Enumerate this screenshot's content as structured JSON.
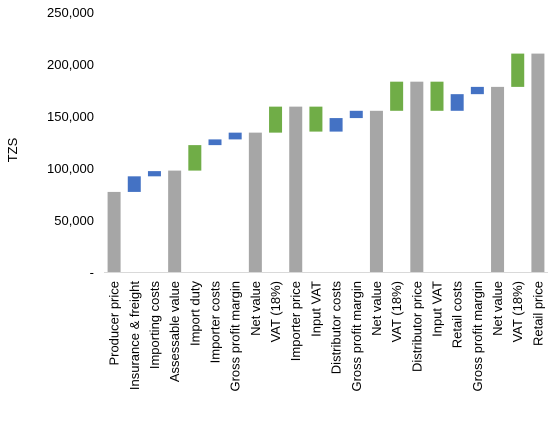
{
  "chart_data": {
    "type": "bar",
    "subtype": "waterfall",
    "title": "",
    "xlabel": "",
    "ylabel": "TZS",
    "ylim": [
      0,
      250000
    ],
    "yticks": [
      {
        "value": 0,
        "label": "-"
      },
      {
        "value": 50000,
        "label": "50,000"
      },
      {
        "value": 100000,
        "label": "100,000"
      },
      {
        "value": 150000,
        "label": "150,000"
      },
      {
        "value": 200000,
        "label": "200,000"
      },
      {
        "value": 250000,
        "label": "250,000"
      }
    ],
    "grid": false,
    "legend": "none",
    "colors": {
      "total": "#a6a6a6",
      "cost": "#4472c4",
      "tax": "#70ad47"
    },
    "bars": [
      {
        "label": "Producer price",
        "kind": "total",
        "base": 0,
        "top": 77000
      },
      {
        "label": "Insurance & freight",
        "kind": "cost",
        "base": 77000,
        "top": 92000
      },
      {
        "label": "Importing costs",
        "kind": "cost",
        "base": 92000,
        "top": 97000
      },
      {
        "label": "Assessable value",
        "kind": "total",
        "base": 0,
        "top": 97500
      },
      {
        "label": "Import duty",
        "kind": "tax",
        "base": 97500,
        "top": 122000
      },
      {
        "label": "Importer costs",
        "kind": "cost",
        "base": 122000,
        "top": 127500
      },
      {
        "label": "Gross profit margin",
        "kind": "cost",
        "base": 127500,
        "top": 134000
      },
      {
        "label": "Net value",
        "kind": "total",
        "base": 0,
        "top": 134000
      },
      {
        "label": "VAT (18%)",
        "kind": "tax",
        "base": 134000,
        "top": 159000
      },
      {
        "label": "Importer price",
        "kind": "total",
        "base": 0,
        "top": 159000
      },
      {
        "label": "Input VAT",
        "kind": "tax",
        "base": 135000,
        "top": 159000
      },
      {
        "label": "Distributor costs",
        "kind": "cost",
        "base": 135000,
        "top": 148000
      },
      {
        "label": "Gross profit margin",
        "kind": "cost",
        "base": 148000,
        "top": 155000
      },
      {
        "label": "Net value",
        "kind": "total",
        "base": 0,
        "top": 155000
      },
      {
        "label": "VAT (18%)",
        "kind": "tax",
        "base": 155000,
        "top": 183000
      },
      {
        "label": "Distributor price",
        "kind": "total",
        "base": 0,
        "top": 183000
      },
      {
        "label": "Input VAT",
        "kind": "tax",
        "base": 155000,
        "top": 183000
      },
      {
        "label": "Retail costs",
        "kind": "cost",
        "base": 155000,
        "top": 171000
      },
      {
        "label": "Gross profit margin",
        "kind": "cost",
        "base": 171000,
        "top": 178000
      },
      {
        "label": "Net value",
        "kind": "total",
        "base": 0,
        "top": 178000
      },
      {
        "label": "VAT (18%)",
        "kind": "tax",
        "base": 178000,
        "top": 210000
      },
      {
        "label": "Retail price",
        "kind": "total",
        "base": 0,
        "top": 210000
      }
    ]
  }
}
